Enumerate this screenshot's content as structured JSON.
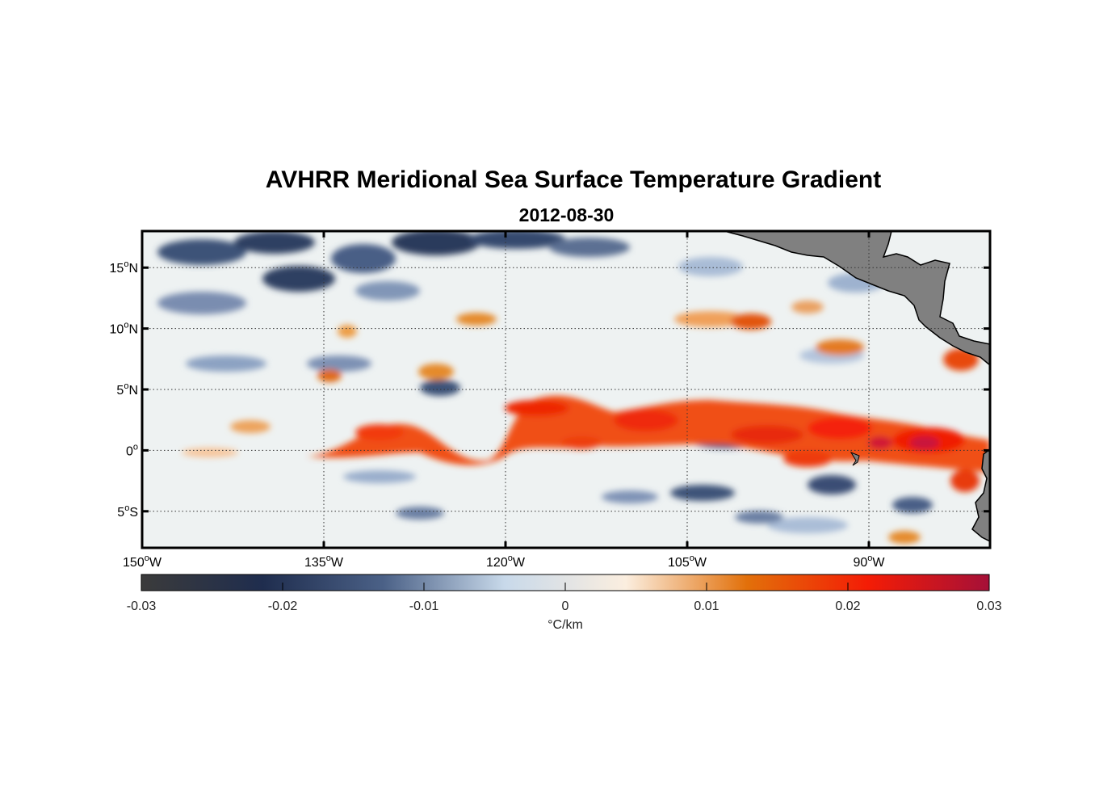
{
  "map": {
    "title": "AVHRR Meridional Sea Surface Temperature Gradient",
    "date": "2012-08-30",
    "lon_range": [
      -150,
      -80
    ],
    "lat_range": [
      -8,
      18
    ],
    "lon_ticks": [
      {
        "value": -150,
        "num": "150",
        "hem": "W"
      },
      {
        "value": -135,
        "num": "135",
        "hem": "W"
      },
      {
        "value": -120,
        "num": "120",
        "hem": "W"
      },
      {
        "value": -105,
        "num": "105",
        "hem": "W"
      },
      {
        "value": -90,
        "num": "90",
        "hem": "W"
      }
    ],
    "lat_ticks": [
      {
        "value": 15,
        "num": "15",
        "hem": "N"
      },
      {
        "value": 10,
        "num": "10",
        "hem": "N"
      },
      {
        "value": 5,
        "num": "5",
        "hem": "N"
      },
      {
        "value": 0,
        "num": "0",
        "hem": ""
      },
      {
        "value": -5,
        "num": "5",
        "hem": "S"
      }
    ],
    "grid": "dotted",
    "land_color": "#808080"
  },
  "colorbar": {
    "range": [
      -0.03,
      0.03
    ],
    "ticks": [
      {
        "value": -0.03,
        "label": "-0.03"
      },
      {
        "value": -0.02,
        "label": "-0.02"
      },
      {
        "value": -0.01,
        "label": "-0.01"
      },
      {
        "value": 0,
        "label": "0"
      },
      {
        "value": 0.01,
        "label": "0.01"
      },
      {
        "value": 0.02,
        "label": "0.02"
      },
      {
        "value": 0.03,
        "label": "0.03"
      }
    ],
    "unit_label": "°C/km",
    "colors": [
      "#3b3b3b",
      "#1f2d4e",
      "#4b6187",
      "#c8d9ea",
      "#fbeedf",
      "#e2700a",
      "#f41c05",
      "#a51038"
    ]
  }
}
